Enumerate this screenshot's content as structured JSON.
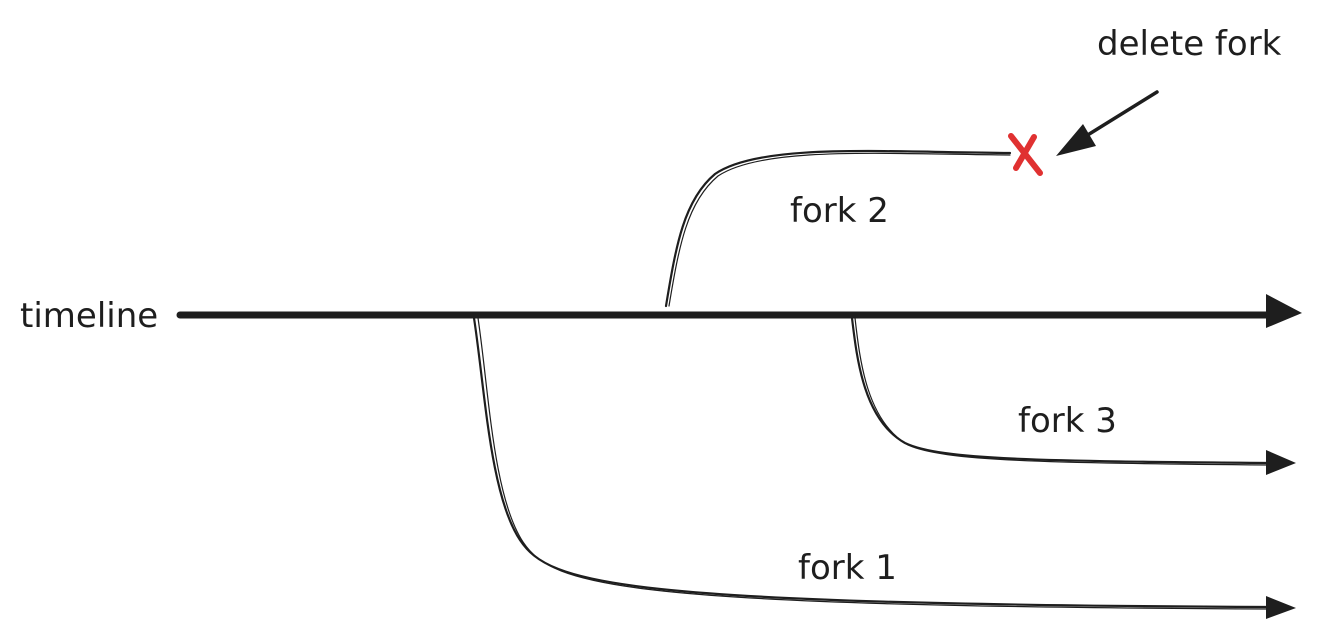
{
  "diagram": {
    "main_line": {
      "label": "timeline"
    },
    "forks": [
      {
        "id": "fork-1",
        "label": "fork 1",
        "status": "active"
      },
      {
        "id": "fork-2",
        "label": "fork 2",
        "status": "deleted"
      },
      {
        "id": "fork-3",
        "label": "fork 3",
        "status": "active"
      }
    ],
    "annotation": {
      "text": "delete fork",
      "target": "fork-2"
    },
    "colors": {
      "stroke": "#1e1e1e",
      "delete_mark": "#e03131",
      "background": "#ffffff"
    }
  }
}
